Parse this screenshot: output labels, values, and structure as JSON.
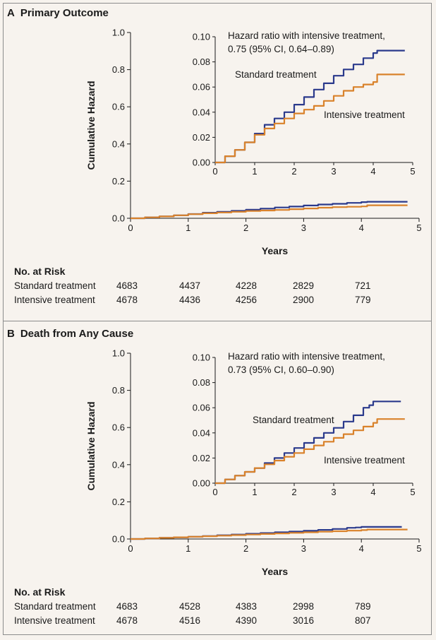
{
  "colors": {
    "standard": "#2b3a8c",
    "intensive": "#d9822b",
    "background": "#f7f3ee"
  },
  "risk_title": "No. at Risk",
  "chart_data": [
    {
      "panel_letter": "A",
      "title": "Primary Outcome",
      "type": "line",
      "xlabel": "Years",
      "ylabel": "Cumulative Hazard",
      "xlim": [
        0,
        5
      ],
      "ylim": [
        0,
        1.0
      ],
      "x_ticks": [
        "0",
        "1",
        "2",
        "3",
        "4",
        "5"
      ],
      "y_ticks": [
        "0.0",
        "0.2",
        "0.4",
        "0.6",
        "0.8",
        "1.0"
      ],
      "series": [
        {
          "name": "Standard treatment",
          "x": [
            0,
            0.25,
            0.5,
            0.75,
            1.0,
            1.25,
            1.5,
            1.75,
            2.0,
            2.25,
            2.5,
            2.75,
            3.0,
            3.25,
            3.5,
            3.75,
            4.0,
            4.1,
            4.8
          ],
          "y": [
            0,
            0.005,
            0.01,
            0.016,
            0.023,
            0.03,
            0.035,
            0.04,
            0.046,
            0.052,
            0.058,
            0.063,
            0.069,
            0.074,
            0.078,
            0.083,
            0.087,
            0.089,
            0.089
          ]
        },
        {
          "name": "Intensive treatment",
          "x": [
            0,
            0.25,
            0.5,
            0.75,
            1.0,
            1.25,
            1.5,
            1.75,
            2.0,
            2.25,
            2.5,
            2.75,
            3.0,
            3.25,
            3.5,
            3.75,
            4.0,
            4.1,
            4.8
          ],
          "y": [
            0,
            0.005,
            0.01,
            0.016,
            0.022,
            0.027,
            0.031,
            0.035,
            0.039,
            0.042,
            0.045,
            0.049,
            0.053,
            0.057,
            0.06,
            0.062,
            0.064,
            0.07,
            0.07
          ]
        }
      ],
      "inset": {
        "xlim": [
          0,
          5
        ],
        "ylim": [
          0,
          0.1
        ],
        "x_ticks": [
          "0",
          "1",
          "2",
          "3",
          "4",
          "5"
        ],
        "y_ticks": [
          "0.00",
          "0.02",
          "0.04",
          "0.06",
          "0.08",
          "0.10"
        ],
        "annotation": [
          "Hazard ratio with intensive treatment,",
          "0.75 (95% CI, 0.64–0.89)"
        ],
        "standard_label": "Standard treatment",
        "intensive_label": "Intensive treatment"
      },
      "risk_table": {
        "times": [
          0,
          1,
          2,
          3,
          4
        ],
        "rows": [
          {
            "label": "Standard treatment",
            "values": [
              "4683",
              "4437",
              "4228",
              "2829",
              "721"
            ]
          },
          {
            "label": "Intensive treatment",
            "values": [
              "4678",
              "4436",
              "4256",
              "2900",
              "779"
            ]
          }
        ]
      }
    },
    {
      "panel_letter": "B",
      "title": "Death from Any Cause",
      "type": "line",
      "xlabel": "Years",
      "ylabel": "Cumulative Hazard",
      "xlim": [
        0,
        5
      ],
      "ylim": [
        0,
        1.0
      ],
      "x_ticks": [
        "0",
        "1",
        "2",
        "3",
        "4",
        "5"
      ],
      "y_ticks": [
        "0.0",
        "0.2",
        "0.4",
        "0.6",
        "0.8",
        "1.0"
      ],
      "series": [
        {
          "name": "Standard treatment",
          "x": [
            0,
            0.25,
            0.5,
            0.75,
            1.0,
            1.25,
            1.5,
            1.75,
            2.0,
            2.25,
            2.5,
            2.75,
            3.0,
            3.25,
            3.5,
            3.75,
            3.9,
            4.0,
            4.7
          ],
          "y": [
            0,
            0.003,
            0.006,
            0.009,
            0.012,
            0.016,
            0.02,
            0.024,
            0.028,
            0.032,
            0.036,
            0.04,
            0.044,
            0.049,
            0.054,
            0.06,
            0.062,
            0.065,
            0.065
          ]
        },
        {
          "name": "Intensive treatment",
          "x": [
            0,
            0.25,
            0.5,
            0.75,
            1.0,
            1.25,
            1.5,
            1.75,
            2.0,
            2.25,
            2.5,
            2.75,
            3.0,
            3.25,
            3.5,
            3.75,
            4.0,
            4.1,
            4.8
          ],
          "y": [
            0,
            0.003,
            0.006,
            0.009,
            0.012,
            0.015,
            0.018,
            0.021,
            0.024,
            0.027,
            0.03,
            0.033,
            0.036,
            0.039,
            0.042,
            0.045,
            0.048,
            0.051,
            0.051
          ]
        }
      ],
      "inset": {
        "xlim": [
          0,
          5
        ],
        "ylim": [
          0,
          0.1
        ],
        "x_ticks": [
          "0",
          "1",
          "2",
          "3",
          "4",
          "5"
        ],
        "y_ticks": [
          "0.00",
          "0.02",
          "0.04",
          "0.06",
          "0.08",
          "0.10"
        ],
        "annotation": [
          "Hazard ratio with intensive treatment,",
          "0.73 (95% CI, 0.60–0.90)"
        ],
        "standard_label": "Standard treatment",
        "intensive_label": "Intensive treatment"
      },
      "risk_table": {
        "times": [
          0,
          1,
          2,
          3,
          4
        ],
        "rows": [
          {
            "label": "Standard treatment",
            "values": [
              "4683",
              "4528",
              "4383",
              "2998",
              "789"
            ]
          },
          {
            "label": "Intensive treatment",
            "values": [
              "4678",
              "4516",
              "4390",
              "3016",
              "807"
            ]
          }
        ]
      }
    }
  ]
}
